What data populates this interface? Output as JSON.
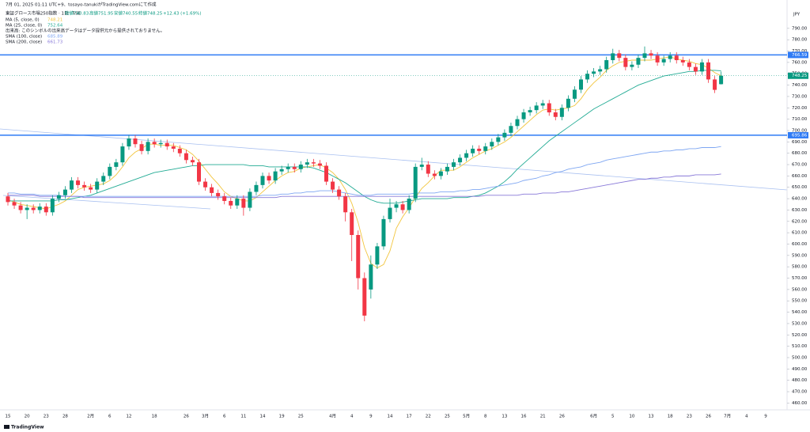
{
  "chart_data": {
    "type": "candlestick",
    "subtitle": "7月 01, 2025 01:11 UTC+9、tosayo-tanukiがTradingView.comにて作成",
    "title": "東証グロース市場250指数 · 1日 · TSE",
    "ohlc_labels": [
      "始値740.83",
      "高値751.95",
      "安値740.55",
      "終値748.25",
      "+12.43 (+1.69%)"
    ],
    "volume_note": "出来高: このシンボルの出来高データはデータ提供元から提供されておりません。",
    "currency": "JPY",
    "brand": "TradingView",
    "up_color": "#089981",
    "down_color": "#f23645",
    "categories": [
      "15",
      null,
      null,
      "20",
      null,
      null,
      "23",
      null,
      null,
      "28",
      null,
      null,
      null,
      "2月",
      null,
      null,
      "6",
      null,
      null,
      "12",
      null,
      null,
      null,
      "18",
      null,
      null,
      null,
      null,
      "26",
      null,
      null,
      "3月",
      null,
      null,
      "6",
      null,
      null,
      "11",
      null,
      null,
      "14",
      null,
      null,
      "19",
      null,
      null,
      "25",
      null,
      null,
      null,
      null,
      "4月",
      null,
      null,
      "4",
      null,
      null,
      "9",
      null,
      null,
      "14",
      null,
      null,
      "17",
      null,
      null,
      "22",
      null,
      null,
      "25",
      null,
      null,
      "5月",
      null,
      null,
      "8",
      null,
      null,
      "13",
      null,
      null,
      "16",
      null,
      null,
      "21",
      null,
      null,
      "26",
      null,
      null,
      null,
      null,
      "6月",
      null,
      null,
      "5",
      null,
      null,
      "10",
      null,
      null,
      "13",
      null,
      null,
      "18",
      null,
      null,
      "23",
      null,
      null,
      "26",
      null,
      null,
      "7月",
      null,
      null,
      "4",
      null,
      null,
      "9"
    ],
    "open": [
      642,
      637,
      634,
      630,
      632,
      630,
      633,
      628,
      640,
      643,
      648,
      656,
      652,
      650,
      648,
      655,
      660,
      668,
      672,
      686,
      693,
      688,
      682,
      690,
      688,
      689,
      686,
      684,
      680,
      674,
      672,
      655,
      650,
      645,
      642,
      638,
      634,
      640,
      632,
      646,
      652,
      660,
      656,
      664,
      666,
      668,
      666,
      670,
      672,
      671,
      669,
      655,
      648,
      642,
      628,
      608,
      570,
      560,
      582,
      598,
      622,
      632,
      635,
      630,
      640,
      668,
      670,
      662,
      660,
      664,
      668,
      672,
      676,
      680,
      684,
      682,
      686,
      690,
      694,
      698,
      704,
      710,
      716,
      718,
      722,
      724,
      716,
      712,
      720,
      728,
      736,
      745,
      750,
      752,
      754,
      762,
      768,
      764,
      756,
      758,
      764,
      768,
      766,
      760,
      763,
      766,
      762,
      760,
      756,
      752,
      760,
      745,
      740.83,
      null,
      null,
      null,
      null,
      null,
      null,
      null
    ],
    "high": [
      645,
      640,
      637,
      635,
      635,
      636,
      636,
      643,
      646,
      651,
      659,
      659,
      655,
      653,
      658,
      663,
      671,
      675,
      689,
      696,
      696,
      691,
      693,
      693,
      692,
      692,
      689,
      687,
      683,
      677,
      675,
      658,
      653,
      648,
      645,
      641,
      643,
      643,
      649,
      655,
      663,
      663,
      667,
      669,
      671,
      671,
      673,
      675,
      675,
      674,
      672,
      658,
      651,
      645,
      631,
      612,
      575,
      590,
      601,
      625,
      640,
      638,
      638,
      643,
      671,
      676,
      673,
      665,
      667,
      671,
      675,
      679,
      683,
      687,
      687,
      689,
      693,
      697,
      701,
      707,
      713,
      719,
      721,
      725,
      727,
      727,
      719,
      723,
      731,
      739,
      748,
      753,
      755,
      757,
      765,
      772,
      771,
      767,
      761,
      767,
      774,
      771,
      769,
      766,
      769,
      769,
      765,
      763,
      759,
      763,
      763,
      748,
      751.95,
      null,
      null,
      null,
      null,
      null,
      null,
      null
    ],
    "low": [
      634,
      631,
      627,
      622,
      627,
      627,
      625,
      625,
      637,
      640,
      645,
      649,
      647,
      645,
      645,
      652,
      657,
      665,
      669,
      683,
      685,
      679,
      679,
      685,
      685,
      683,
      681,
      677,
      671,
      669,
      652,
      647,
      642,
      639,
      635,
      631,
      631,
      625,
      629,
      643,
      649,
      653,
      653,
      661,
      663,
      663,
      663,
      667,
      668,
      666,
      652,
      645,
      639,
      620,
      585,
      560,
      532,
      552,
      578,
      595,
      619,
      628,
      627,
      627,
      637,
      665,
      659,
      657,
      657,
      661,
      665,
      669,
      673,
      677,
      679,
      679,
      683,
      687,
      691,
      695,
      701,
      707,
      713,
      715,
      719,
      713,
      709,
      709,
      717,
      725,
      733,
      742,
      747,
      749,
      751,
      759,
      761,
      753,
      753,
      755,
      761,
      763,
      757,
      757,
      760,
      759,
      757,
      753,
      749,
      749,
      742,
      733,
      740.55,
      null,
      null,
      null,
      null,
      null,
      null,
      null
    ],
    "close": [
      637,
      634,
      630,
      632,
      630,
      633,
      628,
      640,
      643,
      648,
      656,
      652,
      650,
      648,
      655,
      660,
      668,
      672,
      686,
      693,
      688,
      682,
      690,
      688,
      689,
      686,
      684,
      680,
      674,
      672,
      655,
      650,
      645,
      642,
      638,
      634,
      640,
      632,
      646,
      652,
      660,
      656,
      664,
      666,
      668,
      666,
      670,
      672,
      671,
      669,
      655,
      648,
      642,
      628,
      608,
      570,
      537,
      582,
      598,
      622,
      632,
      635,
      630,
      640,
      668,
      670,
      662,
      660,
      664,
      668,
      672,
      676,
      680,
      684,
      682,
      686,
      690,
      694,
      698,
      704,
      710,
      716,
      718,
      722,
      724,
      716,
      712,
      720,
      728,
      736,
      745,
      750,
      752,
      754,
      762,
      768,
      764,
      756,
      758,
      764,
      768,
      766,
      760,
      763,
      766,
      762,
      760,
      756,
      752,
      760,
      745,
      735.82,
      748.25,
      null,
      null,
      null,
      null,
      null,
      null,
      null
    ],
    "series": [
      {
        "name": "MA (5, close, 0)",
        "color": "#f2c53d",
        "values": [
          639,
          637,
          635,
          634,
          633,
          632,
          631,
          633,
          635,
          638,
          643,
          648,
          650,
          651,
          652,
          653,
          656,
          661,
          668,
          676,
          681,
          684,
          688,
          688,
          687,
          687,
          687,
          685,
          683,
          679,
          673,
          666,
          659,
          653,
          646,
          642,
          640,
          638,
          638,
          641,
          646,
          651,
          656,
          660,
          663,
          664,
          667,
          668,
          669,
          670,
          667,
          663,
          657,
          648,
          636,
          619,
          597,
          583,
          579,
          582,
          594,
          614,
          624,
          632,
          641,
          649,
          654,
          660,
          665,
          665,
          665,
          668,
          672,
          676,
          679,
          682,
          684,
          687,
          690,
          694,
          699,
          704,
          709,
          714,
          718,
          719,
          718,
          719,
          720,
          722,
          728,
          736,
          742,
          747,
          753,
          757,
          760,
          761,
          762,
          762,
          762,
          762,
          763,
          764,
          765,
          763,
          762,
          761,
          759,
          758,
          755,
          751,
          748.21,
          null,
          null,
          null,
          null,
          null,
          null,
          null
        ]
      },
      {
        "name": "MA (25, close, 0)",
        "color": "#22ab94",
        "values": [
          638,
          638,
          638,
          638,
          638,
          638,
          638,
          638,
          639,
          639,
          640,
          641,
          642,
          643,
          645,
          647,
          649,
          651,
          653,
          655,
          657,
          659,
          661,
          663,
          664,
          665,
          666,
          667,
          668,
          669,
          669,
          670,
          670,
          670,
          670,
          670,
          670,
          670,
          669,
          669,
          669,
          668,
          668,
          668,
          668,
          668,
          668,
          668,
          667,
          665,
          663,
          660,
          657,
          654,
          650,
          646,
          642,
          639,
          637,
          636,
          636,
          636,
          637,
          638,
          639,
          640,
          640,
          640,
          640,
          640,
          641,
          641,
          641,
          642,
          643,
          645,
          648,
          651,
          655,
          660,
          666,
          671,
          676,
          681,
          686,
          691,
          695,
          699,
          703,
          707,
          711,
          715,
          719,
          722,
          725,
          728,
          731,
          734,
          737,
          740,
          742,
          744,
          746,
          748,
          749,
          750,
          751,
          752,
          752,
          753,
          753,
          753,
          752.64,
          null,
          null,
          null,
          null,
          null,
          null,
          null
        ]
      },
      {
        "name": "SMA (100, close)",
        "color": "#7ea6f2",
        "values": [
          645,
          645,
          644,
          644,
          644,
          643,
          643,
          643,
          643,
          642,
          642,
          642,
          642,
          642,
          642,
          642,
          642,
          642,
          642,
          642,
          642,
          642,
          642,
          642,
          642,
          642,
          642,
          642,
          642,
          642,
          642,
          642,
          642,
          642,
          642,
          642,
          642,
          642,
          642,
          642,
          643,
          643,
          643,
          644,
          644,
          645,
          645,
          646,
          646,
          647,
          647,
          647,
          646,
          645,
          644,
          643,
          643,
          643,
          644,
          644,
          644,
          644,
          644,
          644,
          645,
          645,
          645,
          645,
          646,
          646,
          646,
          647,
          647,
          648,
          648,
          649,
          650,
          651,
          652,
          653,
          654,
          656,
          657,
          658,
          660,
          661,
          663,
          664,
          666,
          667,
          668,
          670,
          671,
          672,
          674,
          675,
          676,
          677,
          678,
          679,
          680,
          681,
          681,
          682,
          682,
          683,
          683,
          684,
          684,
          685,
          685,
          685,
          685.89,
          null,
          null,
          null,
          null,
          null,
          null,
          null
        ]
      },
      {
        "name": "SMA (200, close)",
        "color": "#8878d8",
        "values": [
          643,
          643,
          643,
          643,
          643,
          642,
          642,
          642,
          642,
          642,
          642,
          642,
          641,
          641,
          641,
          641,
          641,
          641,
          641,
          641,
          641,
          641,
          641,
          641,
          641,
          641,
          641,
          641,
          641,
          641,
          641,
          641,
          641,
          641,
          641,
          641,
          641,
          641,
          641,
          641,
          641,
          641,
          641,
          642,
          642,
          642,
          642,
          642,
          642,
          642,
          642,
          642,
          642,
          642,
          642,
          642,
          642,
          642,
          642,
          642,
          642,
          642,
          642,
          642,
          642,
          642,
          642,
          642,
          642,
          642,
          642,
          642,
          642,
          642,
          642,
          643,
          643,
          643,
          643,
          643,
          643,
          644,
          644,
          644,
          645,
          645,
          645,
          646,
          646,
          647,
          648,
          649,
          650,
          651,
          652,
          653,
          654,
          655,
          656,
          657,
          657,
          658,
          658,
          659,
          659,
          660,
          660,
          660,
          661,
          661,
          661,
          661,
          661.73,
          null,
          null,
          null,
          null,
          null,
          null,
          null
        ]
      }
    ],
    "hlines": [
      {
        "value": 766.59,
        "color": "#2f7bf5"
      },
      {
        "value": 695.86,
        "color": "#2f7bf5"
      }
    ],
    "ylim": [
      454,
      808
    ],
    "yticks": [
      {
        "value": 790,
        "label": "790.00"
      },
      {
        "value": 780,
        "label": "780.00"
      },
      {
        "value": 770,
        "label": "770.00"
      },
      {
        "value": 760,
        "label": "760.00"
      },
      {
        "value": 750,
        "label": "750.00"
      },
      {
        "value": 740,
        "label": "740.00"
      },
      {
        "value": 730,
        "label": "730.00"
      },
      {
        "value": 720,
        "label": "720.00"
      },
      {
        "value": 710,
        "label": "710.00"
      },
      {
        "value": 700,
        "label": "700.00"
      },
      {
        "value": 690,
        "label": "690.00"
      },
      {
        "value": 680,
        "label": "680.00"
      },
      {
        "value": 670,
        "label": "670.00"
      },
      {
        "value": 660,
        "label": "660.00"
      },
      {
        "value": 650,
        "label": "650.00"
      },
      {
        "value": 640,
        "label": "640.00"
      },
      {
        "value": 630,
        "label": "630.00"
      },
      {
        "value": 620,
        "label": "620.00"
      },
      {
        "value": 610,
        "label": "610.00"
      },
      {
        "value": 600,
        "label": "600.00"
      },
      {
        "value": 590,
        "label": "590.00"
      },
      {
        "value": 580,
        "label": "580.00"
      },
      {
        "value": 570,
        "label": "570.00"
      },
      {
        "value": 560,
        "label": "560.00"
      },
      {
        "value": 550,
        "label": "550.00"
      },
      {
        "value": 540,
        "label": "540.00"
      },
      {
        "value": 530,
        "label": "530.00"
      },
      {
        "value": 520,
        "label": "520.00"
      },
      {
        "value": 510,
        "label": "510.00"
      },
      {
        "value": 500,
        "label": "500.00"
      },
      {
        "value": 490,
        "label": "490.00"
      },
      {
        "value": 480,
        "label": "480.00"
      },
      {
        "value": 470,
        "label": "470.00"
      },
      {
        "value": 460,
        "label": "460.00"
      }
    ],
    "grid": false
  }
}
